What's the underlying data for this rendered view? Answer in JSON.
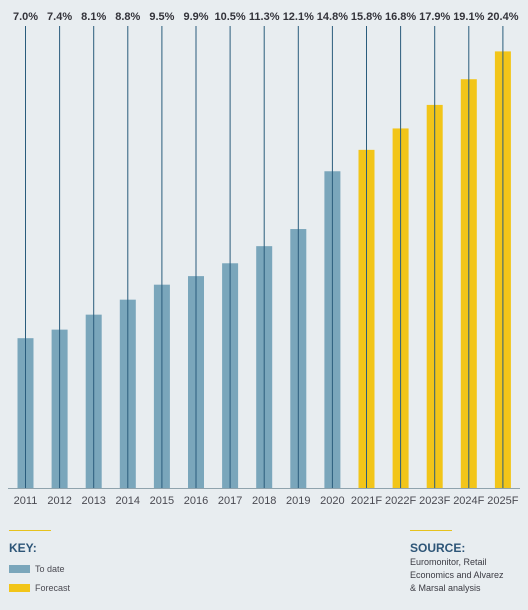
{
  "chart_data": {
    "type": "bar",
    "categories": [
      "2011",
      "2012",
      "2013",
      "2014",
      "2015",
      "2016",
      "2017",
      "2018",
      "2019",
      "2020",
      "2021F",
      "2022F",
      "2023F",
      "2024F",
      "2025F"
    ],
    "values": [
      7.0,
      7.4,
      8.1,
      8.8,
      9.5,
      9.9,
      10.5,
      11.3,
      12.1,
      14.8,
      15.8,
      16.8,
      17.9,
      19.1,
      20.4
    ],
    "value_labels": [
      "7.0%",
      "7.4%",
      "8.1%",
      "8.8%",
      "9.5%",
      "9.9%",
      "10.5%",
      "11.3%",
      "12.1%",
      "14.8%",
      "15.8%",
      "16.8%",
      "17.9%",
      "19.1%",
      "20.4%"
    ],
    "series_type": [
      "to_date",
      "to_date",
      "to_date",
      "to_date",
      "to_date",
      "to_date",
      "to_date",
      "to_date",
      "to_date",
      "to_date",
      "forecast",
      "forecast",
      "forecast",
      "forecast",
      "forecast"
    ],
    "ylim": [
      0,
      21.4
    ],
    "grid": false,
    "colors": {
      "to_date": "#7aa6bb",
      "forecast": "#f2c519",
      "line": "#2a5c7c"
    }
  },
  "key": {
    "title": "KEY:",
    "items": [
      {
        "label": "To date",
        "color": "#7aa6bb"
      },
      {
        "label": "Forecast",
        "color": "#f2c519"
      }
    ]
  },
  "source": {
    "title": "SOURCE:",
    "text": "Euromonitor, Retail\nEconomics and Alvarez\n& Marsal analysis"
  }
}
